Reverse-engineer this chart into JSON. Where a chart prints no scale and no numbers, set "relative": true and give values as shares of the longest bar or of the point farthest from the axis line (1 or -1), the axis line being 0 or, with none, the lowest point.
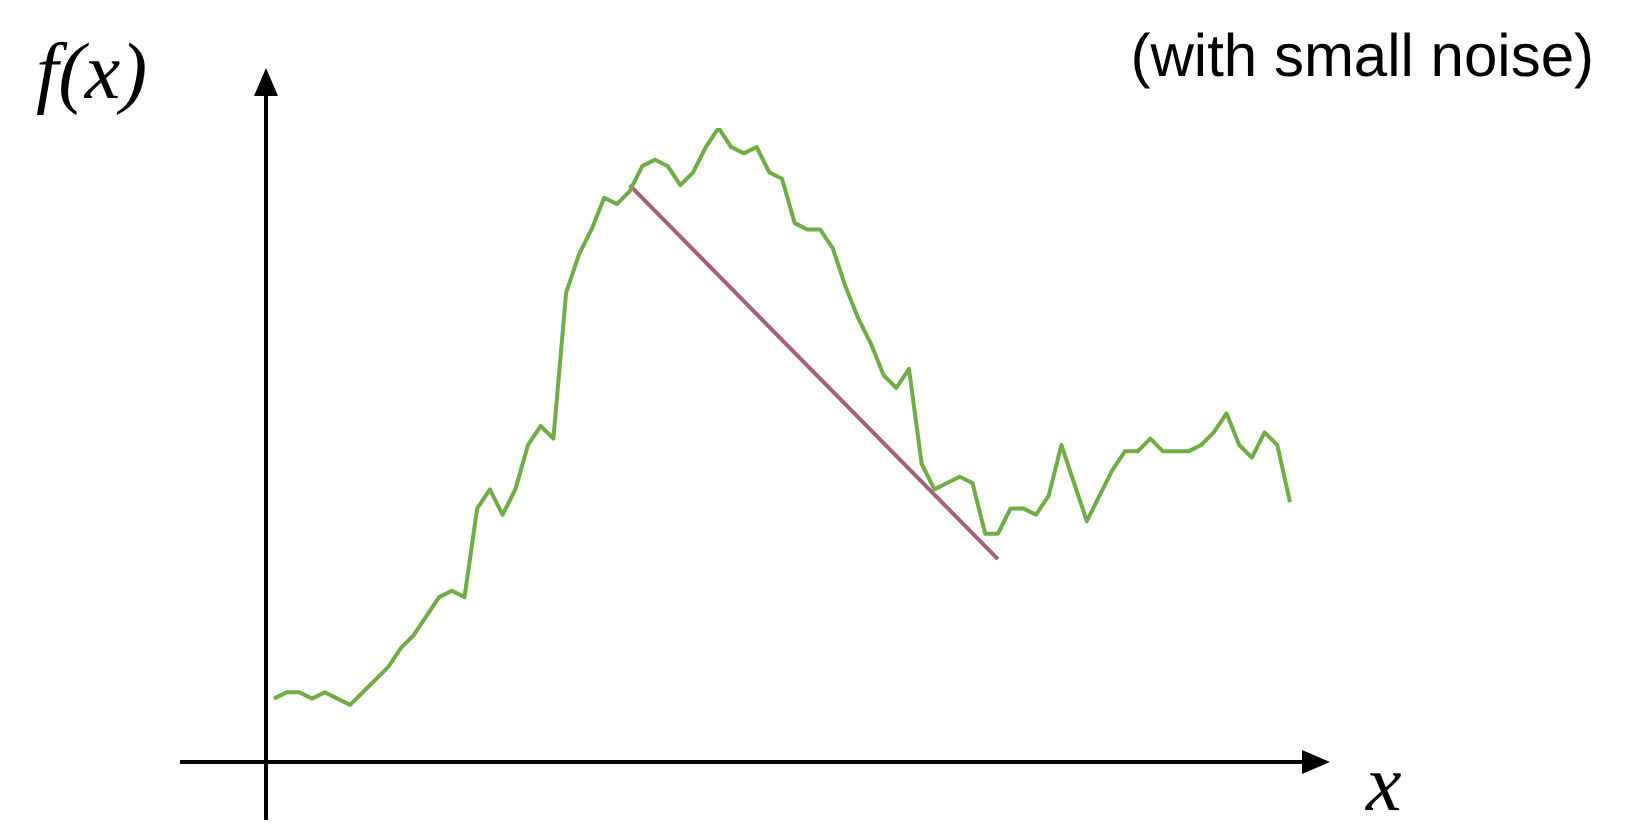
{
  "chart_data": {
    "type": "line",
    "title": "(with small noise)",
    "xlabel": "x",
    "ylabel": "f(x)",
    "relative": true,
    "legend": false,
    "marker": "none",
    "categories": [
      null,
      null,
      null,
      null,
      null,
      null,
      null,
      null,
      null,
      null,
      null,
      null,
      null,
      null,
      null,
      null,
      null,
      null,
      null,
      null,
      null,
      null,
      null,
      null,
      null,
      null,
      null,
      null,
      null,
      null,
      null,
      null,
      null,
      null,
      null,
      null,
      null,
      null,
      null,
      null,
      null,
      null,
      null,
      null,
      null,
      null,
      null,
      null,
      null,
      null,
      null,
      null,
      null,
      null,
      null,
      null,
      null,
      null,
      null,
      null,
      null,
      null,
      null,
      null,
      null,
      null,
      null,
      null,
      null,
      null,
      null,
      null,
      null,
      null,
      null,
      null,
      null,
      null,
      null,
      null,
      null
    ],
    "series": [
      {
        "color": "#70ad47",
        "values": [
          0.1,
          0.11,
          0.11,
          0.1,
          0.11,
          0.1,
          0.09,
          0.11,
          0.13,
          0.15,
          0.18,
          0.2,
          0.23,
          0.26,
          0.27,
          0.26,
          0.4,
          0.43,
          0.39,
          0.43,
          0.5,
          0.53,
          0.51,
          0.74,
          0.8,
          0.84,
          0.89,
          0.88,
          0.9,
          0.94,
          0.95,
          0.94,
          0.91,
          0.93,
          0.97,
          1.0,
          0.97,
          0.96,
          0.97,
          0.93,
          0.92,
          0.85,
          0.84,
          0.84,
          0.81,
          0.75,
          0.7,
          0.66,
          0.61,
          0.59,
          0.62,
          0.47,
          0.43,
          0.44,
          0.45,
          0.44,
          0.36,
          0.36,
          0.4,
          0.4,
          0.39,
          0.42,
          0.5,
          0.44,
          0.38,
          0.42,
          0.46,
          0.49,
          0.49,
          0.51,
          0.49,
          0.49,
          0.49,
          0.5,
          0.52,
          0.55,
          0.5,
          0.48,
          0.52,
          0.5,
          0.41
        ]
      },
      {
        "color": "#a5607e",
        "values": [
          null,
          null,
          null,
          null,
          null,
          null,
          null,
          null,
          null,
          null,
          null,
          null,
          null,
          null,
          null,
          null,
          null,
          null,
          null,
          null,
          null,
          null,
          null,
          null,
          null,
          null,
          null,
          null,
          0.91,
          null,
          null,
          null,
          null,
          null,
          null,
          null,
          null,
          null,
          null,
          null,
          null,
          null,
          null,
          null,
          null,
          null,
          null,
          null,
          null,
          null,
          null,
          null,
          null,
          null,
          null,
          null,
          null,
          0.32,
          null,
          null,
          null,
          null,
          null,
          null,
          null,
          null,
          null,
          null,
          null,
          null,
          null,
          null,
          null,
          null,
          null,
          null,
          null,
          null,
          null,
          null,
          null
        ]
      }
    ]
  }
}
